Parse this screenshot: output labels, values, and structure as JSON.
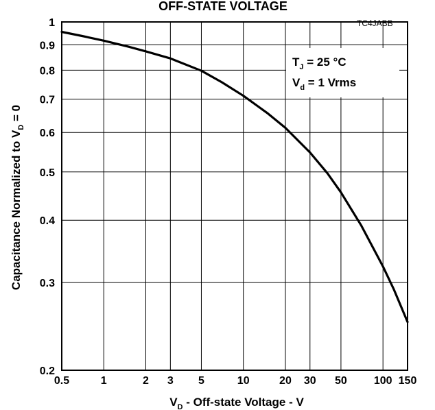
{
  "chart_data": {
    "type": "line",
    "title": "OFF-STATE VOLTAGE",
    "figure_code": "TC4JABB",
    "xlabel": {
      "main": "V",
      "sub": "D",
      "rest": " - Off-state Voltage - V"
    },
    "ylabel": {
      "main": "Capacitance Normalized to V",
      "sub": "D",
      "rest": " = 0"
    },
    "x_scale": "log",
    "y_scale": "log",
    "xlim": [
      0.5,
      150
    ],
    "ylim": [
      0.2,
      1
    ],
    "grid": true,
    "x_ticks": [
      {
        "value": 0.5,
        "label": "0.5"
      },
      {
        "value": 1,
        "label": "1"
      },
      {
        "value": 2,
        "label": "2"
      },
      {
        "value": 3,
        "label": "3"
      },
      {
        "value": 5,
        "label": "5"
      },
      {
        "value": 10,
        "label": "10"
      },
      {
        "value": 20,
        "label": "20"
      },
      {
        "value": 30,
        "label": "30"
      },
      {
        "value": 50,
        "label": "50"
      },
      {
        "value": 100,
        "label": "100"
      },
      {
        "value": 150,
        "label": "150"
      }
    ],
    "y_ticks": [
      {
        "value": 0.2,
        "label": "0.2"
      },
      {
        "value": 0.3,
        "label": "0.3"
      },
      {
        "value": 0.4,
        "label": "0.4"
      },
      {
        "value": 0.5,
        "label": "0.5"
      },
      {
        "value": 0.6,
        "label": "0.6"
      },
      {
        "value": 0.7,
        "label": "0.7"
      },
      {
        "value": 0.8,
        "label": "0.8"
      },
      {
        "value": 0.9,
        "label": "0.9"
      },
      {
        "value": 1,
        "label": "1"
      }
    ],
    "annotation": [
      {
        "main": "T",
        "sub": "J",
        "rest": " = 25 °C"
      },
      {
        "main": "V",
        "sub": "d",
        "rest": " = 1 Vrms"
      }
    ],
    "series": [
      {
        "x": [
          0.5,
          0.7,
          1,
          1.5,
          2,
          3,
          5,
          7,
          10,
          15,
          20,
          30,
          40,
          50,
          70,
          100,
          120,
          150
        ],
        "y": [
          0.955,
          0.937,
          0.917,
          0.892,
          0.873,
          0.845,
          0.798,
          0.757,
          0.711,
          0.655,
          0.613,
          0.547,
          0.497,
          0.455,
          0.39,
          0.323,
          0.29,
          0.25
        ]
      }
    ]
  }
}
